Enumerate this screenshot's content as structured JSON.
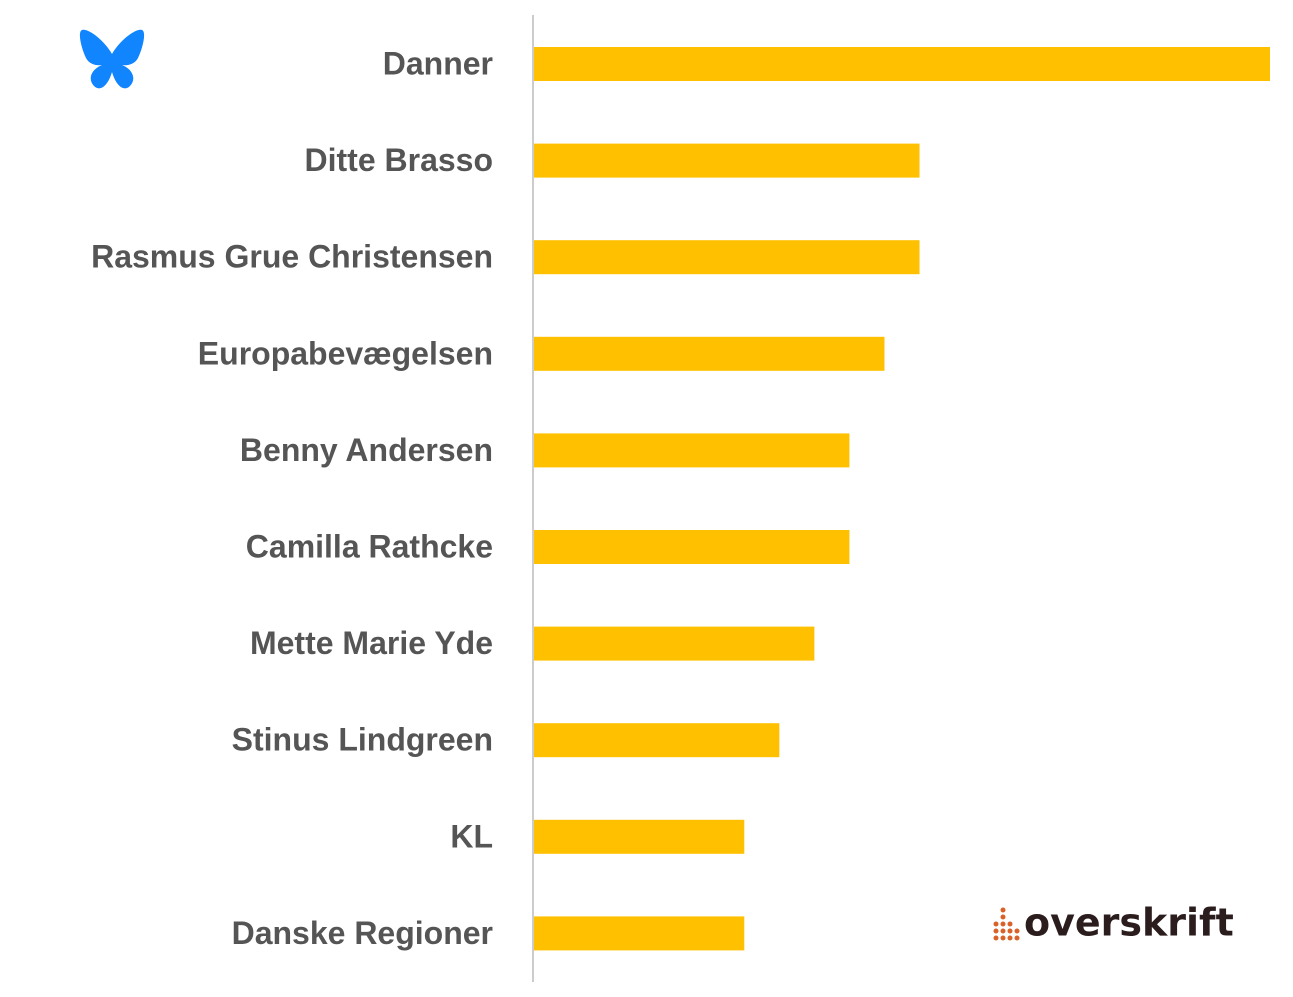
{
  "chart_data": {
    "type": "bar",
    "orientation": "horizontal",
    "categories": [
      "Danner",
      "Ditte Brasso",
      "Rasmus Grue Christensen",
      "Europabevægelsen",
      "Benny Andersen",
      "Camilla Rathcke",
      "Mette Marie Yde",
      "Stinus Lindgreen",
      "KL",
      "Danske Regioner"
    ],
    "values": [
      21,
      11,
      11,
      10,
      9,
      9,
      8,
      7,
      6,
      6
    ],
    "color": "#ffc000"
  },
  "logo": {
    "text": "overskrift"
  }
}
